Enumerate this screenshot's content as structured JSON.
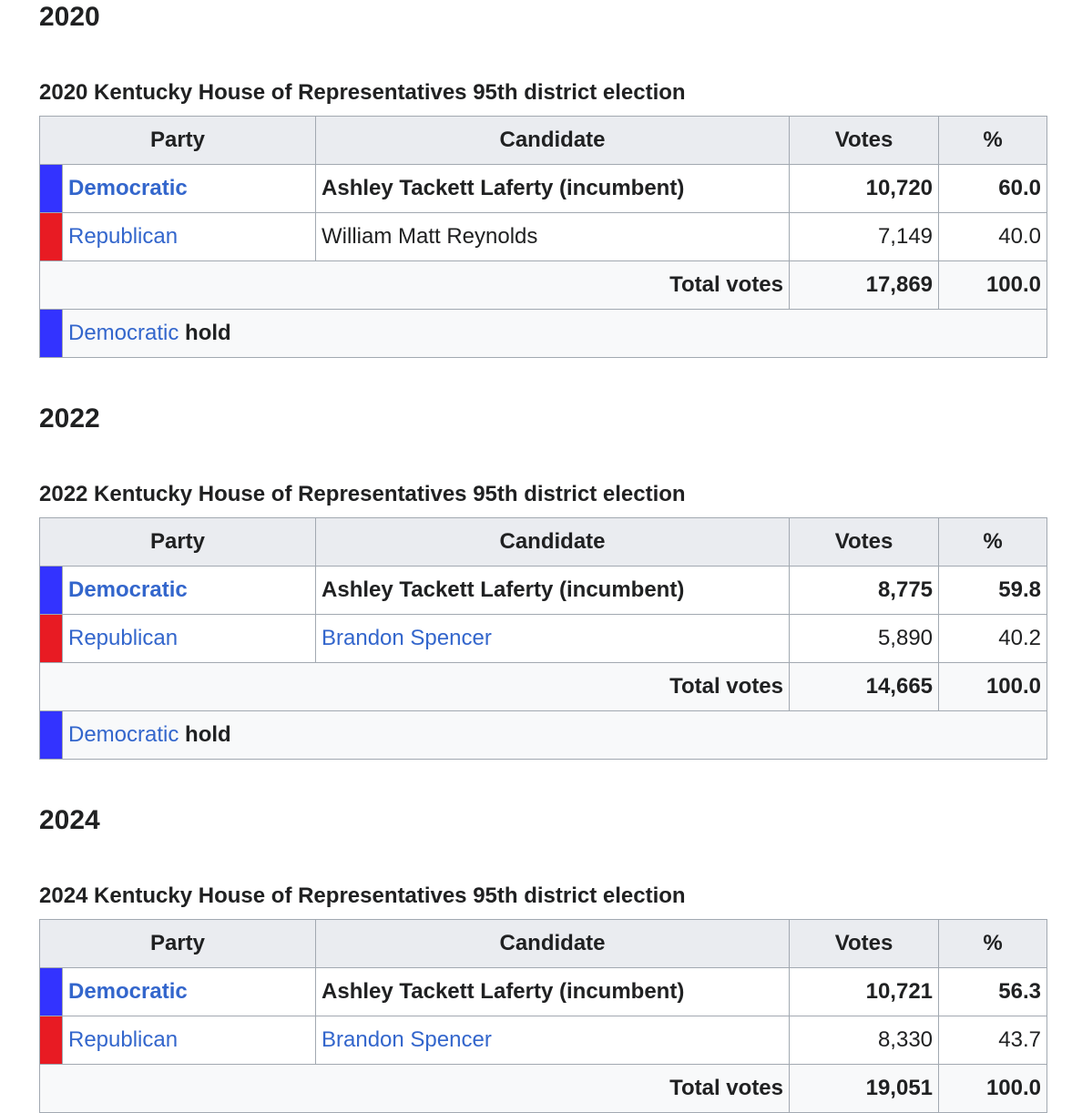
{
  "sections": [
    {
      "year": "2020",
      "caption": "2020 Kentucky House of Representatives 95th district election",
      "columns": [
        "Party",
        "Candidate",
        "Votes",
        "%"
      ],
      "rows": [
        {
          "party": "Democratic",
          "color": "#3333ff",
          "candidate": "Ashley Tackett Laferty (incumbent)",
          "votes": "10,720",
          "percent": "60.0",
          "winner": true,
          "candidate_link": false
        },
        {
          "party": "Republican",
          "color": "#e81b23",
          "candidate": "William Matt Reynolds",
          "votes": "7,149",
          "percent": "40.0",
          "winner": false,
          "candidate_link": false
        }
      ],
      "total": {
        "label": "Total votes",
        "votes": "17,869",
        "percent": "100.0"
      },
      "result": {
        "party": "Democratic",
        "color": "#3333ff",
        "word": "hold"
      }
    },
    {
      "year": "2022",
      "caption": "2022 Kentucky House of Representatives 95th district election",
      "columns": [
        "Party",
        "Candidate",
        "Votes",
        "%"
      ],
      "rows": [
        {
          "party": "Democratic",
          "color": "#3333ff",
          "candidate": "Ashley Tackett Laferty (incumbent)",
          "votes": "8,775",
          "percent": "59.8",
          "winner": true,
          "candidate_link": false
        },
        {
          "party": "Republican",
          "color": "#e81b23",
          "candidate": "Brandon Spencer",
          "votes": "5,890",
          "percent": "40.2",
          "winner": false,
          "candidate_link": true
        }
      ],
      "total": {
        "label": "Total votes",
        "votes": "14,665",
        "percent": "100.0"
      },
      "result": {
        "party": "Democratic",
        "color": "#3333ff",
        "word": "hold"
      }
    },
    {
      "year": "2024",
      "caption": "2024 Kentucky House of Representatives 95th district election",
      "columns": [
        "Party",
        "Candidate",
        "Votes",
        "%"
      ],
      "rows": [
        {
          "party": "Democratic",
          "color": "#3333ff",
          "candidate": "Ashley Tackett Laferty (incumbent)",
          "votes": "10,721",
          "percent": "56.3",
          "winner": true,
          "candidate_link": false
        },
        {
          "party": "Republican",
          "color": "#e81b23",
          "candidate": "Brandon Spencer",
          "votes": "8,330",
          "percent": "43.7",
          "winner": false,
          "candidate_link": true
        }
      ],
      "total": {
        "label": "Total votes",
        "votes": "19,051",
        "percent": "100.0"
      }
    }
  ]
}
